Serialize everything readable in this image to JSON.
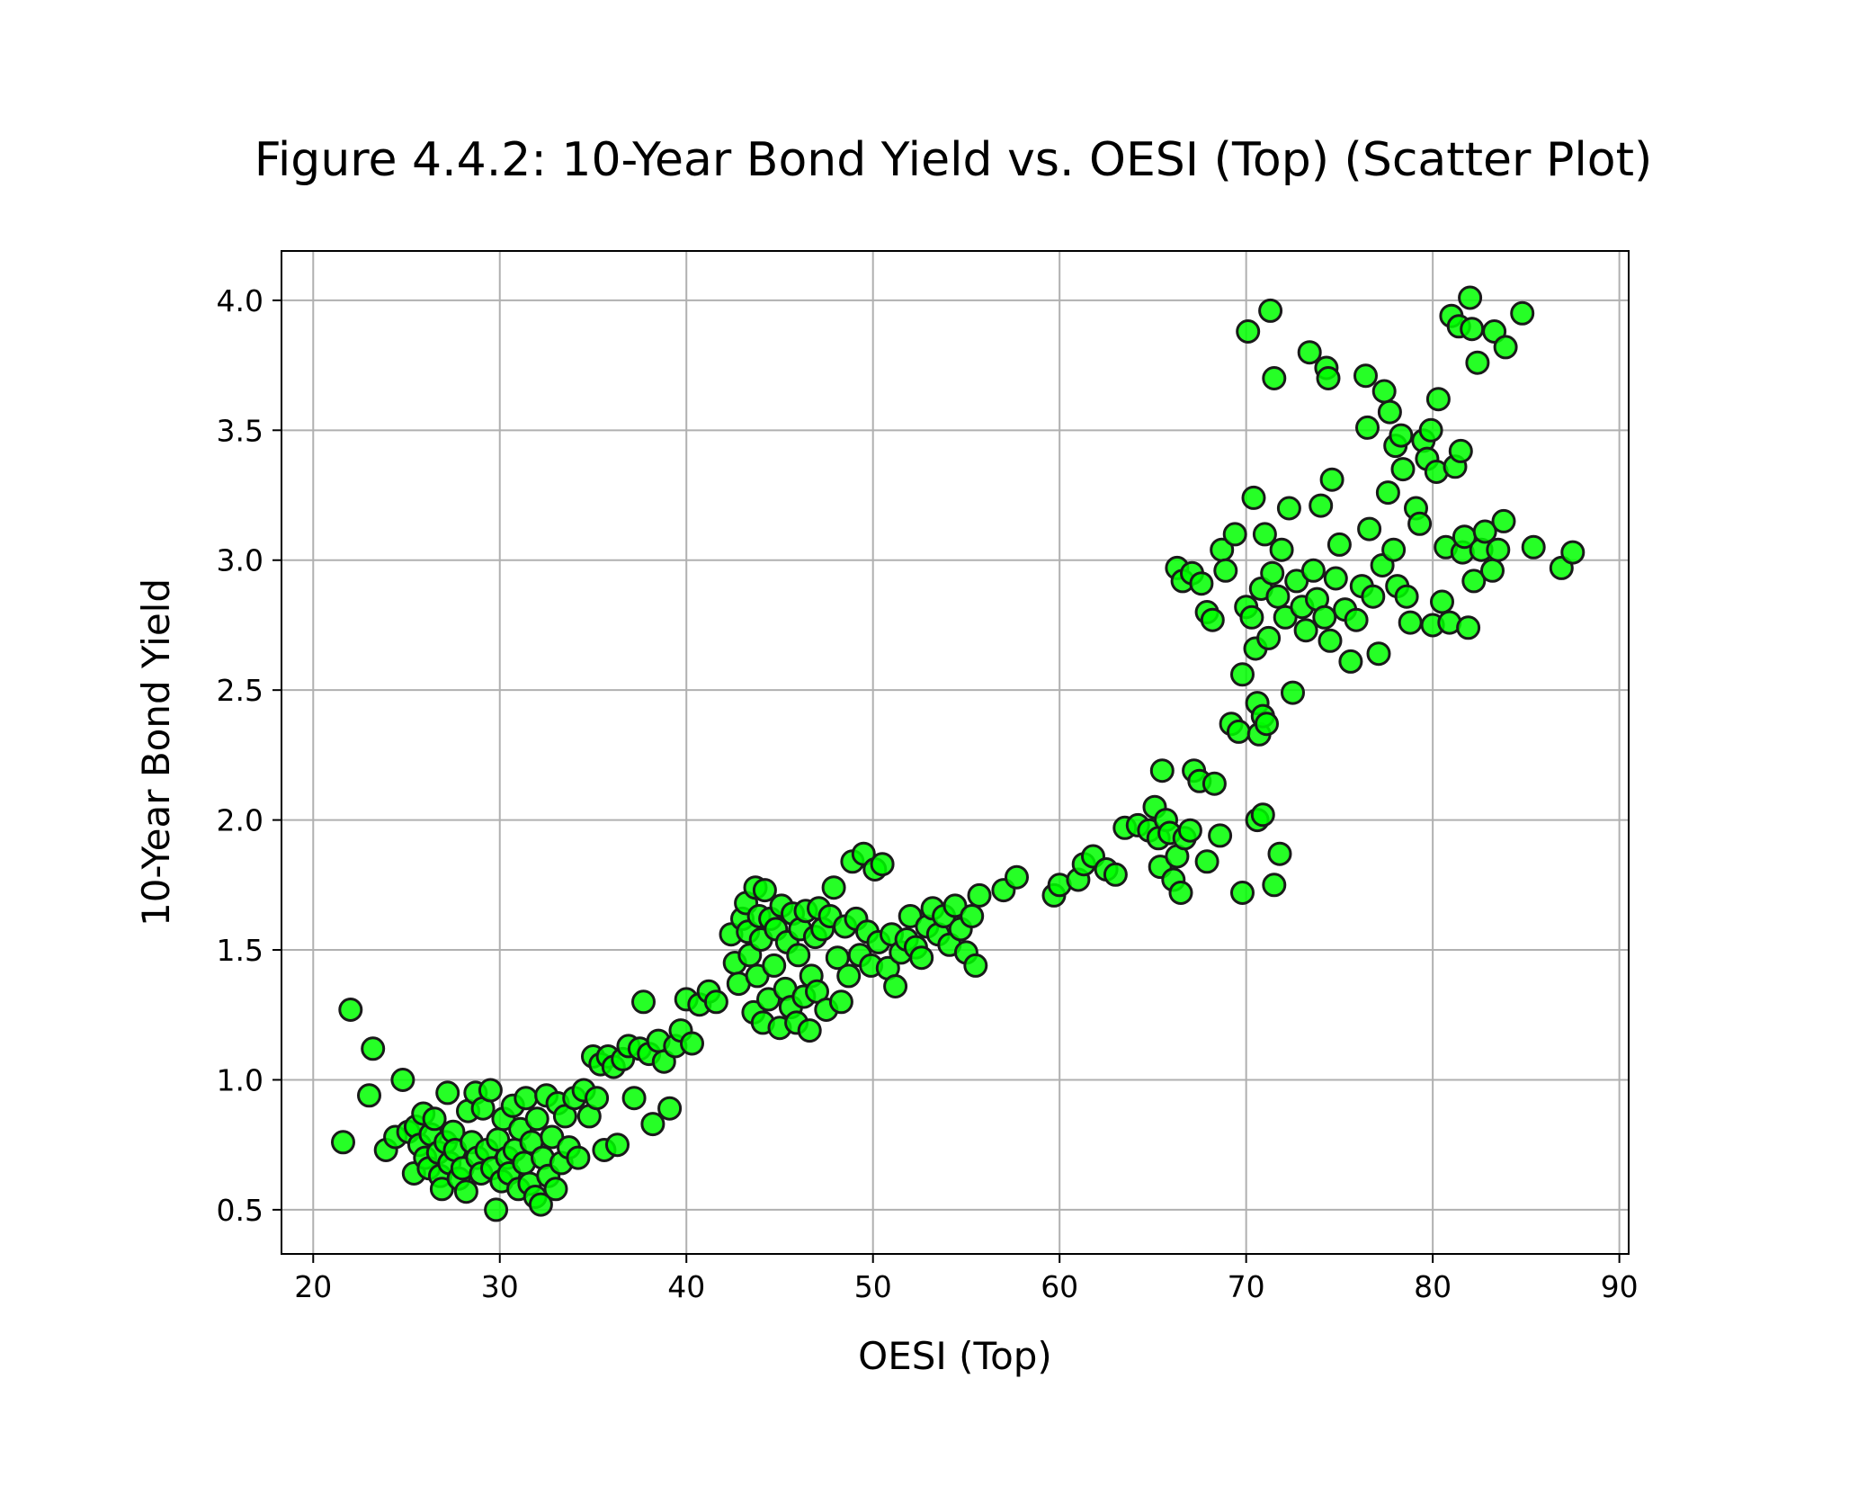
{
  "chart_data": {
    "type": "scatter",
    "title": "Figure 4.4.2: 10-Year Bond Yield vs. OESI (Top) (Scatter Plot)",
    "xlabel": "OESI (Top)",
    "ylabel": "10-Year Bond Yield",
    "xlim": [
      18.3,
      90.5
    ],
    "ylim": [
      0.33,
      4.19
    ],
    "xticks": [
      20,
      30,
      40,
      50,
      60,
      70,
      80,
      90
    ],
    "yticks": [
      0.5,
      1.0,
      1.5,
      2.0,
      2.5,
      3.0,
      3.5,
      4.0
    ],
    "xtick_labels": [
      "20",
      "30",
      "40",
      "50",
      "60",
      "70",
      "80",
      "90"
    ],
    "ytick_labels": [
      "0.5",
      "1.0",
      "1.5",
      "2.0",
      "2.5",
      "3.0",
      "3.5",
      "4.0"
    ],
    "grid": true,
    "legend": false,
    "marker_fill": "#00ff00",
    "marker_edge": "#1a1a1a",
    "series": [
      {
        "points": [
          [
            21.6,
            0.76
          ],
          [
            22.0,
            1.27
          ],
          [
            23.0,
            0.94
          ],
          [
            23.2,
            1.12
          ],
          [
            23.9,
            0.73
          ],
          [
            24.4,
            0.78
          ],
          [
            24.8,
            1.0
          ],
          [
            25.1,
            0.8
          ],
          [
            25.4,
            0.64
          ],
          [
            25.5,
            0.82
          ],
          [
            25.7,
            0.75
          ],
          [
            25.9,
            0.87
          ],
          [
            26.0,
            0.7
          ],
          [
            26.2,
            0.66
          ],
          [
            26.3,
            0.79
          ],
          [
            26.5,
            0.85
          ],
          [
            26.7,
            0.72
          ],
          [
            26.8,
            0.63
          ],
          [
            26.9,
            0.58
          ],
          [
            27.1,
            0.76
          ],
          [
            27.2,
            0.95
          ],
          [
            27.3,
            0.68
          ],
          [
            27.5,
            0.8
          ],
          [
            27.6,
            0.73
          ],
          [
            27.8,
            0.62
          ],
          [
            28.0,
            0.66
          ],
          [
            28.2,
            0.57
          ],
          [
            28.3,
            0.88
          ],
          [
            28.5,
            0.76
          ],
          [
            28.7,
            0.95
          ],
          [
            28.8,
            0.7
          ],
          [
            29.0,
            0.64
          ],
          [
            29.1,
            0.89
          ],
          [
            29.3,
            0.73
          ],
          [
            29.5,
            0.96
          ],
          [
            29.6,
            0.66
          ],
          [
            29.8,
            0.5
          ],
          [
            29.9,
            0.77
          ],
          [
            30.1,
            0.61
          ],
          [
            30.2,
            0.85
          ],
          [
            30.4,
            0.7
          ],
          [
            30.5,
            0.64
          ],
          [
            30.7,
            0.9
          ],
          [
            30.8,
            0.73
          ],
          [
            31.0,
            0.58
          ],
          [
            31.1,
            0.81
          ],
          [
            31.3,
            0.68
          ],
          [
            31.4,
            0.93
          ],
          [
            31.6,
            0.6
          ],
          [
            31.7,
            0.76
          ],
          [
            31.9,
            0.55
          ],
          [
            32.0,
            0.85
          ],
          [
            32.2,
            0.52
          ],
          [
            32.3,
            0.7
          ],
          [
            32.5,
            0.94
          ],
          [
            32.6,
            0.63
          ],
          [
            32.8,
            0.78
          ],
          [
            33.0,
            0.58
          ],
          [
            33.1,
            0.91
          ],
          [
            33.3,
            0.68
          ],
          [
            33.5,
            0.86
          ],
          [
            33.7,
            0.74
          ],
          [
            34.0,
            0.93
          ],
          [
            34.2,
            0.7
          ],
          [
            34.5,
            0.96
          ],
          [
            34.8,
            0.86
          ],
          [
            35.0,
            1.09
          ],
          [
            35.2,
            0.93
          ],
          [
            35.4,
            1.06
          ],
          [
            35.6,
            0.73
          ],
          [
            35.8,
            1.09
          ],
          [
            36.1,
            1.05
          ],
          [
            36.3,
            0.75
          ],
          [
            36.6,
            1.08
          ],
          [
            36.9,
            1.13
          ],
          [
            37.2,
            0.93
          ],
          [
            37.5,
            1.12
          ],
          [
            37.7,
            1.3
          ],
          [
            38.0,
            1.1
          ],
          [
            38.2,
            0.83
          ],
          [
            38.5,
            1.15
          ],
          [
            38.8,
            1.07
          ],
          [
            39.1,
            0.89
          ],
          [
            39.4,
            1.13
          ],
          [
            39.7,
            1.19
          ],
          [
            40.0,
            1.31
          ],
          [
            40.3,
            1.14
          ],
          [
            40.7,
            1.29
          ],
          [
            41.2,
            1.34
          ],
          [
            41.6,
            1.3
          ],
          [
            42.4,
            1.56
          ],
          [
            42.6,
            1.45
          ],
          [
            42.8,
            1.37
          ],
          [
            43.0,
            1.62
          ],
          [
            43.2,
            1.68
          ],
          [
            43.3,
            1.57
          ],
          [
            43.4,
            1.48
          ],
          [
            43.6,
            1.26
          ],
          [
            43.7,
            1.74
          ],
          [
            43.8,
            1.4
          ],
          [
            43.9,
            1.63
          ],
          [
            44.0,
            1.54
          ],
          [
            44.1,
            1.22
          ],
          [
            44.2,
            1.73
          ],
          [
            44.4,
            1.31
          ],
          [
            44.5,
            1.62
          ],
          [
            44.7,
            1.44
          ],
          [
            44.8,
            1.58
          ],
          [
            45.0,
            1.2
          ],
          [
            45.1,
            1.67
          ],
          [
            45.3,
            1.35
          ],
          [
            45.4,
            1.53
          ],
          [
            45.6,
            1.28
          ],
          [
            45.7,
            1.64
          ],
          [
            45.9,
            1.22
          ],
          [
            46.0,
            1.48
          ],
          [
            46.1,
            1.58
          ],
          [
            46.3,
            1.32
          ],
          [
            46.4,
            1.65
          ],
          [
            46.6,
            1.19
          ],
          [
            46.7,
            1.4
          ],
          [
            46.9,
            1.55
          ],
          [
            47.0,
            1.34
          ],
          [
            47.1,
            1.66
          ],
          [
            47.3,
            1.58
          ],
          [
            47.5,
            1.27
          ],
          [
            47.7,
            1.63
          ],
          [
            47.9,
            1.74
          ],
          [
            48.1,
            1.47
          ],
          [
            48.3,
            1.3
          ],
          [
            48.5,
            1.59
          ],
          [
            48.7,
            1.4
          ],
          [
            48.9,
            1.84
          ],
          [
            49.1,
            1.62
          ],
          [
            49.3,
            1.48
          ],
          [
            49.5,
            1.87
          ],
          [
            49.7,
            1.57
          ],
          [
            49.9,
            1.44
          ],
          [
            50.1,
            1.81
          ],
          [
            50.3,
            1.53
          ],
          [
            50.5,
            1.83
          ],
          [
            50.8,
            1.43
          ],
          [
            51.0,
            1.56
          ],
          [
            51.2,
            1.36
          ],
          [
            51.5,
            1.49
          ],
          [
            51.8,
            1.54
          ],
          [
            52.0,
            1.63
          ],
          [
            52.3,
            1.51
          ],
          [
            52.6,
            1.47
          ],
          [
            52.9,
            1.59
          ],
          [
            53.2,
            1.66
          ],
          [
            53.5,
            1.56
          ],
          [
            53.8,
            1.63
          ],
          [
            54.1,
            1.52
          ],
          [
            54.4,
            1.67
          ],
          [
            54.7,
            1.58
          ],
          [
            55.0,
            1.49
          ],
          [
            55.3,
            1.63
          ],
          [
            55.5,
            1.44
          ],
          [
            55.7,
            1.71
          ],
          [
            57.0,
            1.73
          ],
          [
            57.7,
            1.78
          ],
          [
            59.7,
            1.71
          ],
          [
            60.0,
            1.75
          ],
          [
            61.0,
            1.77
          ],
          [
            61.3,
            1.83
          ],
          [
            61.8,
            1.86
          ],
          [
            62.5,
            1.81
          ],
          [
            63.0,
            1.79
          ],
          [
            63.5,
            1.97
          ],
          [
            64.2,
            1.98
          ],
          [
            64.8,
            1.96
          ],
          [
            65.1,
            2.05
          ],
          [
            65.3,
            1.93
          ],
          [
            65.4,
            1.82
          ],
          [
            65.5,
            2.19
          ],
          [
            65.7,
            2.0
          ],
          [
            65.9,
            1.95
          ],
          [
            66.1,
            1.77
          ],
          [
            66.3,
            1.86
          ],
          [
            66.5,
            1.72
          ],
          [
            66.7,
            1.93
          ],
          [
            67.0,
            1.96
          ],
          [
            67.2,
            2.19
          ],
          [
            67.5,
            2.15
          ],
          [
            67.9,
            1.84
          ],
          [
            68.3,
            2.14
          ],
          [
            68.6,
            1.94
          ],
          [
            69.8,
            1.72
          ],
          [
            70.6,
            2.0
          ],
          [
            70.9,
            2.02
          ],
          [
            71.5,
            1.75
          ],
          [
            71.8,
            1.87
          ],
          [
            66.3,
            2.97
          ],
          [
            66.6,
            2.92
          ],
          [
            67.1,
            2.95
          ],
          [
            67.6,
            2.91
          ],
          [
            67.9,
            2.8
          ],
          [
            68.2,
            2.77
          ],
          [
            68.7,
            3.04
          ],
          [
            68.9,
            2.96
          ],
          [
            69.2,
            2.37
          ],
          [
            69.4,
            3.1
          ],
          [
            69.6,
            2.34
          ],
          [
            69.8,
            2.56
          ],
          [
            70.0,
            2.82
          ],
          [
            70.1,
            3.88
          ],
          [
            70.3,
            2.78
          ],
          [
            70.4,
            3.24
          ],
          [
            70.5,
            2.66
          ],
          [
            70.6,
            2.45
          ],
          [
            70.7,
            2.33
          ],
          [
            70.8,
            2.89
          ],
          [
            70.9,
            2.4
          ],
          [
            71.0,
            3.1
          ],
          [
            71.1,
            2.37
          ],
          [
            71.2,
            2.7
          ],
          [
            71.3,
            3.96
          ],
          [
            71.4,
            2.95
          ],
          [
            71.5,
            3.7
          ],
          [
            71.7,
            2.86
          ],
          [
            71.9,
            3.04
          ],
          [
            72.1,
            2.78
          ],
          [
            72.3,
            3.2
          ],
          [
            72.5,
            2.49
          ],
          [
            72.7,
            2.92
          ],
          [
            73.0,
            2.82
          ],
          [
            73.2,
            2.73
          ],
          [
            73.4,
            3.8
          ],
          [
            73.6,
            2.96
          ],
          [
            73.8,
            2.85
          ],
          [
            74.0,
            3.21
          ],
          [
            74.2,
            2.78
          ],
          [
            74.3,
            3.74
          ],
          [
            74.4,
            3.7
          ],
          [
            74.5,
            2.69
          ],
          [
            74.6,
            3.31
          ],
          [
            74.8,
            2.93
          ],
          [
            75.0,
            3.06
          ],
          [
            75.3,
            2.81
          ],
          [
            75.6,
            2.61
          ],
          [
            75.9,
            2.77
          ],
          [
            76.2,
            2.9
          ],
          [
            76.4,
            3.71
          ],
          [
            76.5,
            3.51
          ],
          [
            76.6,
            3.12
          ],
          [
            76.8,
            2.86
          ],
          [
            77.1,
            2.64
          ],
          [
            77.3,
            2.98
          ],
          [
            77.4,
            3.65
          ],
          [
            77.6,
            3.26
          ],
          [
            77.7,
            3.57
          ],
          [
            77.9,
            3.04
          ],
          [
            78.0,
            3.44
          ],
          [
            78.1,
            2.9
          ],
          [
            78.3,
            3.48
          ],
          [
            78.4,
            3.35
          ],
          [
            78.6,
            2.86
          ],
          [
            78.8,
            2.76
          ],
          [
            79.1,
            3.2
          ],
          [
            79.3,
            3.14
          ],
          [
            79.5,
            3.46
          ],
          [
            79.7,
            3.39
          ],
          [
            79.9,
            3.5
          ],
          [
            80.0,
            2.75
          ],
          [
            80.2,
            3.34
          ],
          [
            80.3,
            3.62
          ],
          [
            80.5,
            2.84
          ],
          [
            80.7,
            3.05
          ],
          [
            80.9,
            2.76
          ],
          [
            81.0,
            3.94
          ],
          [
            81.2,
            3.36
          ],
          [
            81.4,
            3.9
          ],
          [
            81.5,
            3.42
          ],
          [
            81.6,
            3.03
          ],
          [
            81.7,
            3.09
          ],
          [
            81.9,
            2.74
          ],
          [
            82.0,
            4.01
          ],
          [
            82.1,
            3.89
          ],
          [
            82.2,
            2.92
          ],
          [
            82.4,
            3.76
          ],
          [
            82.6,
            3.04
          ],
          [
            82.8,
            3.11
          ],
          [
            83.2,
            2.96
          ],
          [
            83.3,
            3.88
          ],
          [
            83.5,
            3.04
          ],
          [
            83.8,
            3.15
          ],
          [
            83.9,
            3.82
          ],
          [
            84.8,
            3.95
          ],
          [
            85.4,
            3.05
          ],
          [
            86.9,
            2.97
          ],
          [
            87.5,
            3.03
          ]
        ]
      }
    ]
  }
}
